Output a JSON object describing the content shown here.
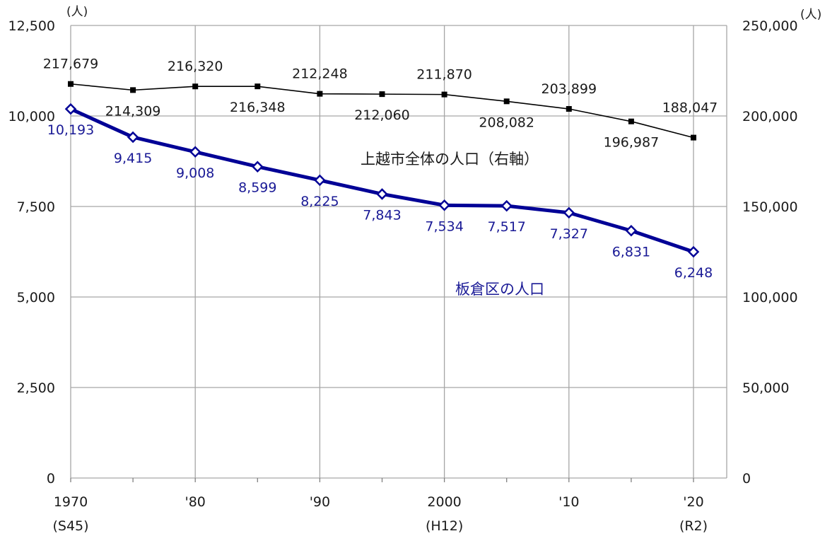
{
  "chart_data": {
    "type": "line",
    "x": [
      "1970",
      "1975",
      "1980",
      "1985",
      "1990",
      "1995",
      "2000",
      "2005",
      "2010",
      "2015",
      "2020"
    ],
    "xtick_labels": [
      {
        "x": "1970",
        "lines": [
          "1970",
          "(S45)"
        ]
      },
      {
        "x": "1980",
        "lines": [
          "'80"
        ]
      },
      {
        "x": "1990",
        "lines": [
          "'90"
        ]
      },
      {
        "x": "2000",
        "lines": [
          "2000",
          "(H12)"
        ]
      },
      {
        "x": "2010",
        "lines": [
          "'10"
        ]
      },
      {
        "x": "2020",
        "lines": [
          "'20",
          "(R2)"
        ]
      }
    ],
    "y_left": {
      "unit": "(人)",
      "ylim": [
        0,
        12500
      ],
      "ticks": [
        0,
        2500,
        5000,
        7500,
        10000,
        12500
      ],
      "tick_labels": [
        "0",
        "2,500",
        "5,000",
        "7,500",
        "10,000",
        "12,500"
      ]
    },
    "y_right": {
      "unit": "(人)",
      "ylim": [
        0,
        250000
      ],
      "ticks": [
        0,
        50000,
        100000,
        150000,
        200000,
        250000
      ],
      "tick_labels": [
        "0",
        "50,000",
        "100,000",
        "150,000",
        "200,000",
        "250,000"
      ]
    },
    "grid": true,
    "series": [
      {
        "name": "上越市全体の人口（右軸）",
        "axis": "right",
        "color": "#000000",
        "marker": "filled-square",
        "values": [
          217679,
          214309,
          216320,
          216348,
          212248,
          212060,
          211870,
          208082,
          203899,
          196987,
          188047
        ],
        "labels": [
          "217,679",
          "214,309",
          "216,320",
          "216,348",
          "212,248",
          "212,060",
          "211,870",
          "208,082",
          "203,899",
          "196,987",
          "188,047"
        ]
      },
      {
        "name": "板倉区の人口",
        "axis": "left",
        "color": "#000096",
        "marker": "open-diamond",
        "values": [
          10193,
          9415,
          9008,
          8599,
          8225,
          7843,
          7534,
          7517,
          7327,
          6831,
          6248
        ],
        "labels": [
          "10,193",
          "9,415",
          "9,008",
          "8,599",
          "8,225",
          "7,843",
          "7,534",
          "7,517",
          "7,327",
          "6,831",
          "6,248"
        ]
      }
    ]
  }
}
